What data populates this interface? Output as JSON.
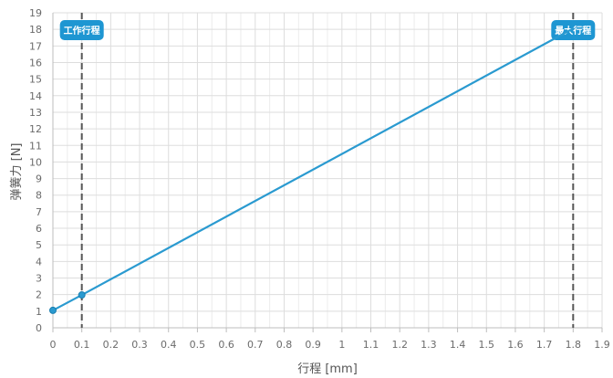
{
  "chart_data": {
    "type": "line",
    "title": "",
    "xlabel": "行程 [mm]",
    "ylabel": "弹簧力 [N]",
    "xlim": [
      0,
      1.9
    ],
    "ylim": [
      0,
      19
    ],
    "x_ticks": [
      0,
      0.1,
      0.2,
      0.3,
      0.4,
      0.5,
      0.6,
      0.7,
      0.8,
      0.9,
      1.0,
      1.1,
      1.2,
      1.3,
      1.4,
      1.5,
      1.6,
      1.7,
      1.8,
      1.9
    ],
    "y_ticks": [
      0,
      1,
      2,
      3,
      4,
      5,
      6,
      7,
      8,
      9,
      10,
      11,
      12,
      13,
      14,
      15,
      16,
      17,
      18,
      19
    ],
    "grid": true,
    "legend": "none",
    "series": [
      {
        "x": [
          0,
          0.1,
          1.8
        ],
        "y": [
          1.05,
          1.98,
          18.05
        ],
        "color": "#2a9ad0",
        "points_marked": [
          0,
          0.1
        ]
      }
    ],
    "vertical_markers": [
      {
        "x": 0.1,
        "label": "工作行程",
        "label_color": "#1e96d2",
        "line_color": "#555555"
      },
      {
        "x": 1.8,
        "label": "最大行程",
        "label_color": "#1e96d2",
        "line_color": "#555555"
      }
    ]
  }
}
